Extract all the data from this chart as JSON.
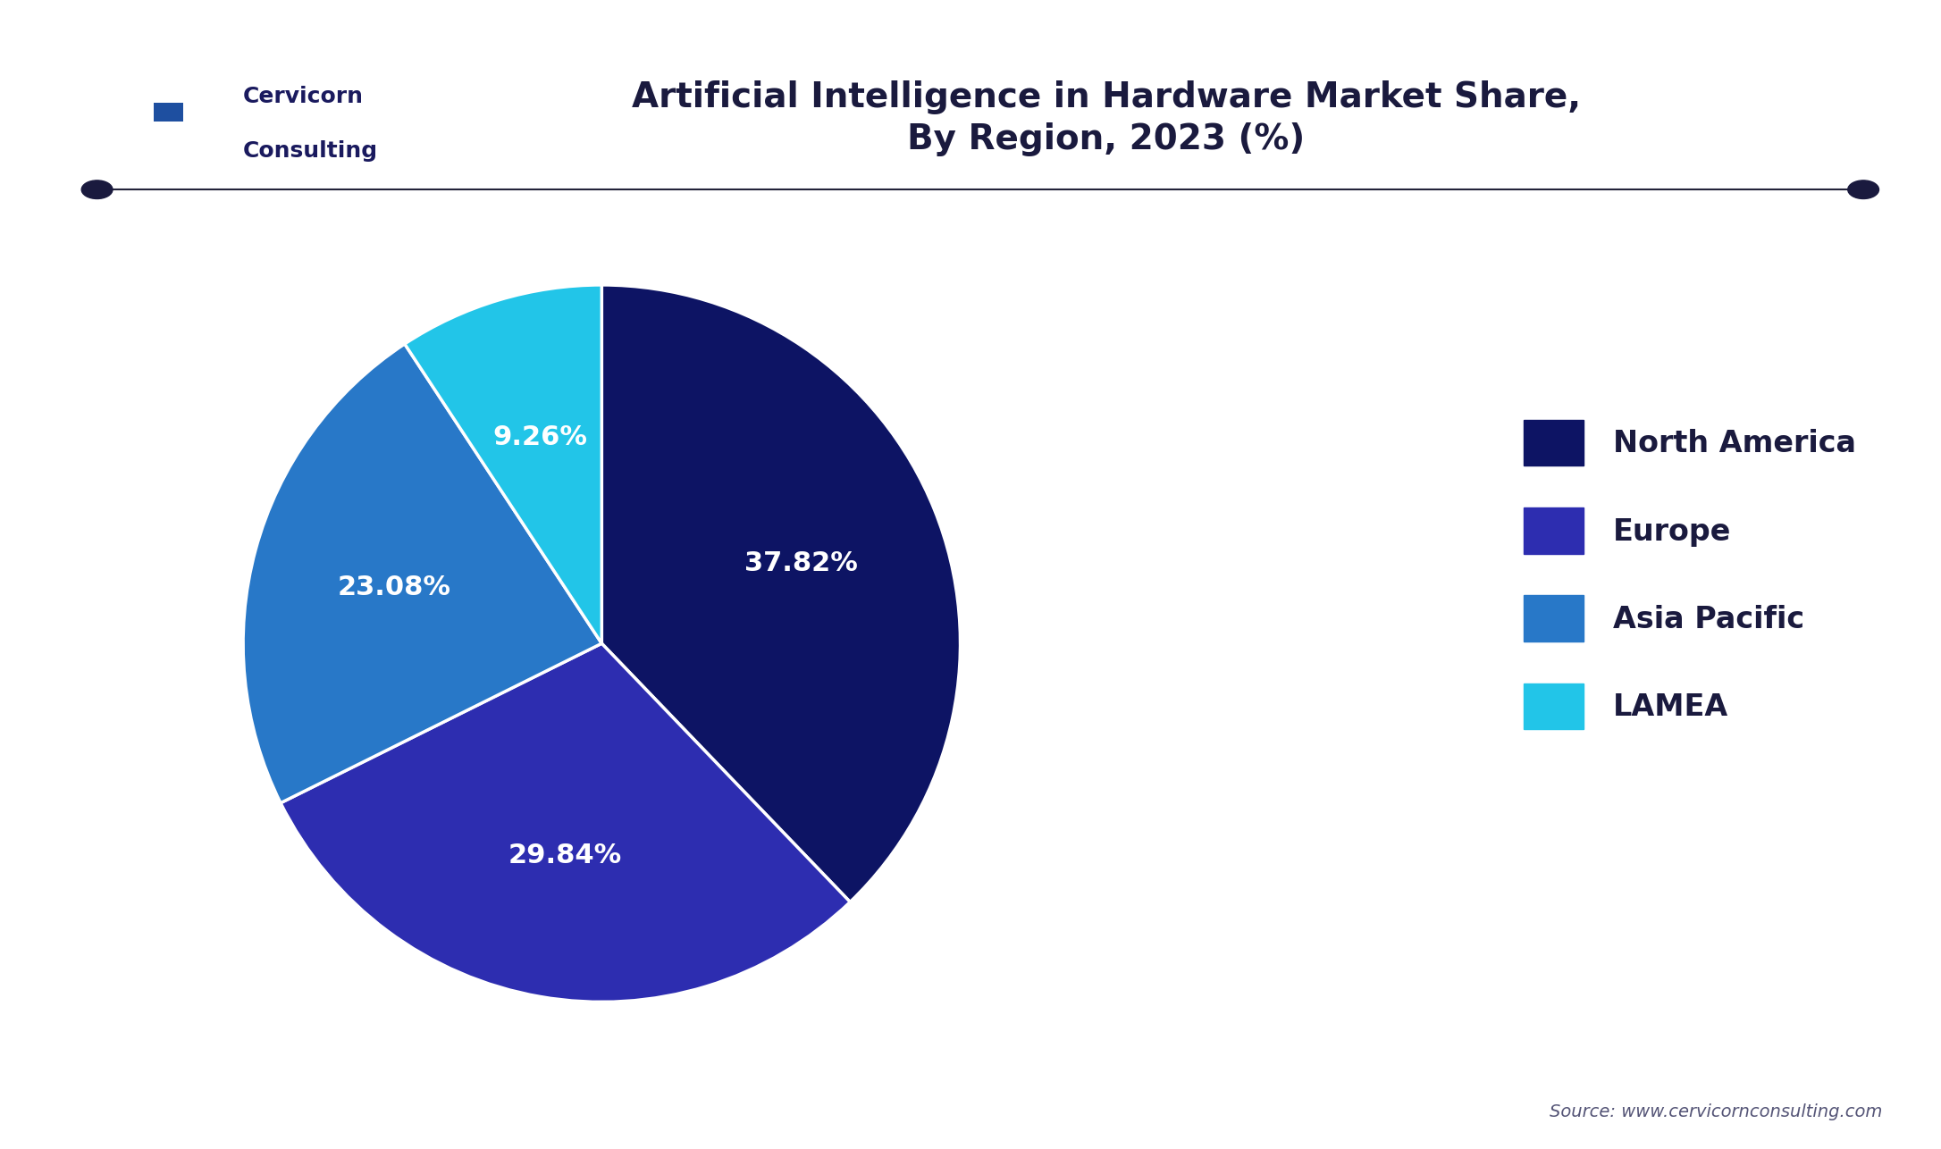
{
  "title": "Artificial Intelligence in Hardware Market Share,\nBy Region, 2023 (%)",
  "slices": [
    37.82,
    29.84,
    23.08,
    9.26
  ],
  "labels": [
    "37.82%",
    "29.84%",
    "23.08%",
    "9.26%"
  ],
  "legend_labels": [
    "North America",
    "Europe",
    "Asia Pacific",
    "LAMEA"
  ],
  "colors": [
    "#0d1464",
    "#2d2db0",
    "#2878c8",
    "#22c5e8"
  ],
  "startangle": 90,
  "background_color": "#ffffff",
  "title_color": "#1a1a3e",
  "label_color": "#ffffff",
  "source_text": "Source: www.cervicornconsulting.com",
  "title_fontsize": 28,
  "legend_fontsize": 24,
  "label_fontsize": 22,
  "logo_box_color": "#1e4fa0",
  "logo_text_color": "#ffffff",
  "brand_name_color": "#1a1a5e"
}
